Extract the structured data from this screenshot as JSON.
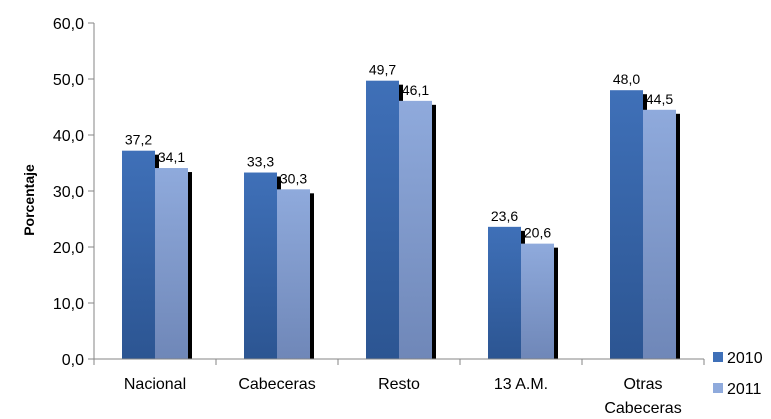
{
  "chart_data": {
    "type": "bar",
    "title": "",
    "xlabel": "",
    "ylabel": "Porcentaje",
    "ylim": [
      0,
      60
    ],
    "yticks": [
      "0,0",
      "10,0",
      "20,0",
      "30,0",
      "40,0",
      "50,0",
      "60,0"
    ],
    "categories": [
      [
        "Nacional"
      ],
      [
        "Cabeceras"
      ],
      [
        "Resto"
      ],
      [
        "13 A.M."
      ],
      [
        "Otras",
        "Cabeceras"
      ]
    ],
    "series": [
      {
        "name": "2010",
        "values": [
          37.2,
          33.3,
          49.7,
          23.6,
          48.0
        ],
        "labels": [
          "37,2",
          "33,3",
          "49,7",
          "23,6",
          "48,0"
        ],
        "color_top": "#3f70b8",
        "color_bottom": "#2c5592"
      },
      {
        "name": "2011",
        "values": [
          34.1,
          30.3,
          46.1,
          20.6,
          44.5
        ],
        "labels": [
          "34,1",
          "30,3",
          "46,1",
          "20,6",
          "44,5"
        ],
        "color_top": "#8faadc",
        "color_bottom": "#6f87b8"
      }
    ],
    "grid": false,
    "legend_position": "bottom-right"
  },
  "colors": {
    "axis": "#868686",
    "shadow": "#000000"
  }
}
